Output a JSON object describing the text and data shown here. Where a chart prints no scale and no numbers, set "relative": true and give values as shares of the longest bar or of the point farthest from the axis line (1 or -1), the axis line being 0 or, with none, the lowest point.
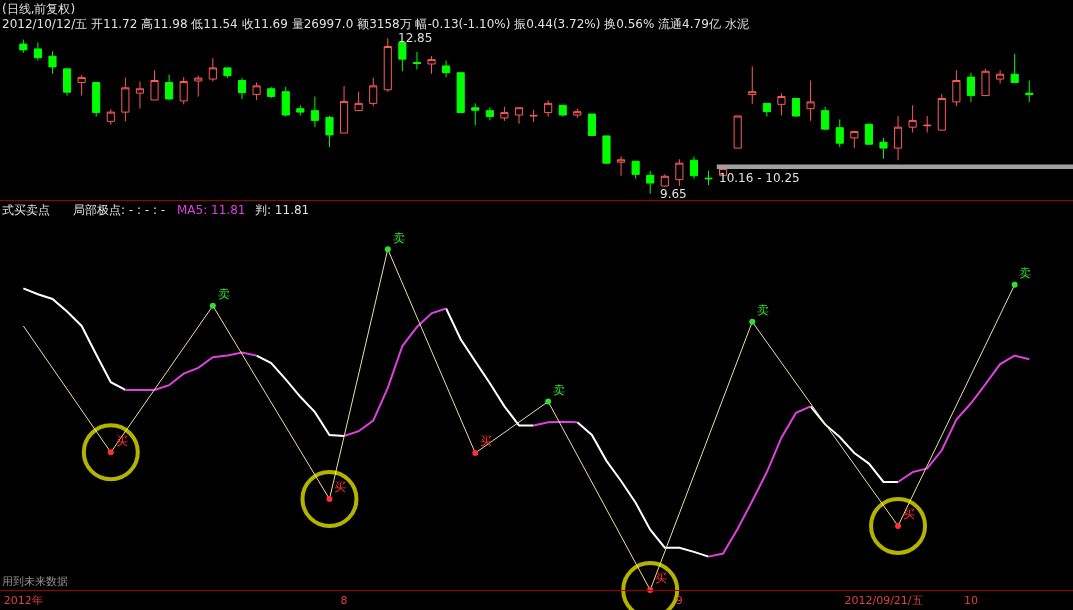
{
  "chart_data": [
    {
      "type": "candlestick",
      "title": "(日线,前复权)",
      "subtitle": "2012/10/12/五 开11.72 高11.98 低11.54 收11.69 量26997.0 额3158万 幅-0.13(-1.10%) 振0.44(3.72%) 换0.56% 流通4.79亿 水泥",
      "categories": [
        null,
        null,
        null,
        null,
        null,
        null,
        null,
        null,
        null,
        null,
        null,
        null,
        null,
        null,
        null,
        null,
        null,
        null,
        null,
        null,
        null,
        null,
        null,
        null,
        null,
        null,
        null,
        null,
        null,
        null,
        null,
        null,
        null,
        null,
        null,
        null,
        null,
        null,
        null,
        null,
        null,
        null,
        null,
        null,
        null,
        null,
        null,
        null,
        null,
        null,
        null,
        null,
        null,
        null,
        null,
        null,
        null,
        null,
        null,
        null,
        null,
        null,
        null,
        null,
        null,
        null,
        null,
        null,
        null,
        null
      ],
      "ohlc": [
        [
          12.73,
          12.82,
          12.55,
          12.61
        ],
        [
          12.63,
          12.76,
          12.39,
          12.45
        ],
        [
          12.48,
          12.58,
          12.12,
          12.26
        ],
        [
          12.22,
          12.22,
          11.67,
          11.74
        ],
        [
          11.94,
          12.09,
          11.67,
          12.04
        ],
        [
          11.94,
          11.94,
          11.24,
          11.32
        ],
        [
          11.14,
          11.39,
          11.07,
          11.33
        ],
        [
          11.33,
          12.04,
          11.14,
          11.83
        ],
        [
          11.72,
          11.96,
          11.4,
          11.81
        ],
        [
          11.58,
          12.19,
          11.58,
          11.98
        ],
        [
          11.94,
          12.1,
          11.58,
          11.6
        ],
        [
          11.56,
          12.05,
          11.49,
          11.96
        ],
        [
          11.97,
          12.08,
          11.65,
          12.03
        ],
        [
          12.01,
          12.44,
          11.96,
          12.24
        ],
        [
          12.24,
          12.24,
          12.03,
          12.08
        ],
        [
          11.98,
          12.03,
          11.6,
          11.73
        ],
        [
          11.69,
          11.94,
          11.58,
          11.87
        ],
        [
          11.81,
          11.85,
          11.62,
          11.65
        ],
        [
          11.75,
          11.85,
          11.24,
          11.27
        ],
        [
          11.4,
          11.47,
          11.26,
          11.33
        ],
        [
          11.36,
          11.65,
          11.02,
          11.16
        ],
        [
          11.22,
          11.25,
          10.61,
          10.86
        ],
        [
          10.9,
          11.87,
          10.9,
          11.55
        ],
        [
          11.36,
          11.75,
          11.36,
          11.51
        ],
        [
          11.51,
          12.04,
          11.45,
          11.87
        ],
        [
          11.79,
          12.85,
          11.75,
          12.68
        ],
        [
          12.76,
          12.76,
          12.17,
          12.42
        ],
        [
          12.35,
          12.57,
          12.21,
          12.33
        ],
        [
          12.32,
          12.48,
          12.12,
          12.41
        ],
        [
          12.28,
          12.39,
          12.05,
          12.14
        ],
        [
          12.14,
          12.14,
          11.31,
          11.32
        ],
        [
          11.42,
          11.51,
          11.06,
          11.37
        ],
        [
          11.36,
          11.43,
          11.16,
          11.24
        ],
        [
          11.21,
          11.44,
          11.15,
          11.32
        ],
        [
          11.27,
          11.42,
          11.09,
          11.42
        ],
        [
          11.25,
          11.38,
          11.13,
          11.26
        ],
        [
          11.32,
          11.57,
          11.24,
          11.51
        ],
        [
          11.47,
          11.47,
          11.24,
          11.27
        ],
        [
          11.27,
          11.4,
          11.21,
          11.34
        ],
        [
          11.29,
          11.29,
          10.84,
          10.85
        ],
        [
          10.84,
          10.84,
          10.26,
          10.28
        ],
        [
          10.3,
          10.42,
          10.02,
          10.35
        ],
        [
          10.32,
          10.32,
          9.96,
          10.05
        ],
        [
          10.03,
          10.12,
          9.65,
          9.87
        ],
        [
          9.81,
          10.05,
          9.8,
          10.01
        ],
        [
          9.94,
          10.36,
          9.81,
          10.28
        ],
        [
          10.34,
          10.41,
          9.96,
          10.02
        ],
        [
          9.97,
          10.12,
          9.83,
          9.96
        ],
        [
          10.03,
          10.23,
          10.03,
          10.17
        ],
        [
          10.59,
          11.25,
          10.59,
          11.25
        ],
        [
          11.69,
          12.27,
          11.5,
          11.75
        ],
        [
          11.51,
          11.51,
          11.24,
          11.34
        ],
        [
          11.49,
          11.72,
          11.26,
          11.65
        ],
        [
          11.61,
          11.61,
          11.24,
          11.25
        ],
        [
          11.4,
          11.98,
          11.15,
          11.54
        ],
        [
          11.36,
          11.44,
          10.97,
          10.98
        ],
        [
          11.01,
          11.18,
          10.61,
          10.69
        ],
        [
          10.8,
          10.95,
          10.59,
          10.93
        ],
        [
          11.08,
          11.09,
          10.66,
          10.67
        ],
        [
          10.71,
          10.8,
          10.37,
          10.59
        ],
        [
          10.59,
          11.25,
          10.34,
          11.02
        ],
        [
          11.02,
          11.47,
          10.91,
          11.16
        ],
        [
          11.05,
          11.25,
          10.91,
          11.06
        ],
        [
          10.96,
          11.7,
          10.96,
          11.61
        ],
        [
          11.54,
          12.19,
          11.45,
          11.98
        ],
        [
          12.05,
          12.14,
          11.54,
          11.67
        ],
        [
          11.67,
          12.22,
          11.67,
          12.17
        ],
        [
          12.01,
          12.19,
          11.92,
          12.11
        ],
        [
          12.11,
          12.53,
          11.94,
          11.94
        ],
        [
          11.72,
          11.98,
          11.54,
          11.69
        ]
      ],
      "annotations": [
        "12.85",
        "9.65"
      ],
      "bands": [
        {
          "axis": "y",
          "from": 10.16,
          "to": 10.25,
          "label": "10.16 - 10.25",
          "color": "#a0a0a0"
        }
      ]
    },
    {
      "type": "line",
      "title": "式买卖点",
      "relative": true,
      "categories": [
        "2012年",
        null,
        null,
        null,
        null,
        null,
        null,
        null,
        null,
        null,
        null,
        null,
        null,
        null,
        null,
        null,
        null,
        null,
        null,
        null,
        null,
        null,
        "8",
        null,
        null,
        null,
        null,
        null,
        null,
        null,
        null,
        null,
        null,
        null,
        null,
        null,
        null,
        null,
        null,
        null,
        null,
        null,
        null,
        null,
        null,
        "9",
        null,
        null,
        null,
        null,
        null,
        null,
        null,
        null,
        null,
        null,
        null,
        null,
        null,
        "2012/09/21/五",
        null,
        null,
        null,
        null,
        null,
        "10",
        null,
        null,
        null,
        null
      ],
      "annotations": [
        "局部极点: - : - : -",
        "MA5: 11.81",
        "判: 11.81",
        "用到未来数据"
      ],
      "series": [
        {
          "color": "#ffffff",
          "values": [
            0.885,
            0.868,
            0.854,
            0.817,
            0.775,
            0.691,
            0.61,
            0.587,
            null,
            null,
            null,
            null,
            null,
            null,
            null,
            null,
            0.688,
            0.666,
            0.618,
            0.567,
            0.522,
            0.455,
            0.452,
            null,
            null,
            null,
            null,
            null,
            null,
            0.826,
            0.736,
            0.671,
            0.607,
            0.539,
            0.483,
            0.483,
            null,
            null,
            0.492,
            0.455,
            0.379,
            0.32,
            0.256,
            0.177,
            0.124,
            0.124,
            0.112,
            0.098,
            null,
            null,
            null,
            null,
            null,
            null,
            0.539,
            0.486,
            0.449,
            0.402,
            0.371,
            0.317,
            0.317,
            null,
            null,
            null,
            null,
            null,
            null,
            null,
            null,
            null
          ]
        },
        {
          "color": "#e040e0",
          "values": [
            null,
            null,
            null,
            null,
            null,
            null,
            null,
            0.587,
            0.587,
            0.587,
            0.601,
            0.635,
            0.652,
            0.683,
            0.688,
            0.697,
            0.688,
            null,
            null,
            null,
            null,
            null,
            0.452,
            0.466,
            0.497,
            0.593,
            0.716,
            0.772,
            0.812,
            0.826,
            null,
            null,
            null,
            null,
            null,
            0.483,
            0.492,
            0.494,
            0.492,
            null,
            null,
            null,
            null,
            null,
            null,
            null,
            null,
            0.098,
            0.107,
            0.18,
            0.261,
            0.346,
            0.447,
            0.52,
            0.539,
            null,
            null,
            null,
            null,
            null,
            0.317,
            0.346,
            0.357,
            0.41,
            0.5,
            0.548,
            0.604,
            0.663,
            0.688,
            0.677
          ]
        },
        {
          "color": "#f0dca0",
          "values": [
            0.775,
            null,
            null,
            null,
            null,
            null,
            0.404,
            null,
            null,
            null,
            null,
            null,
            null,
            0.834,
            null,
            null,
            null,
            null,
            null,
            null,
            null,
            0.267,
            null,
            null,
            null,
            1,
            null,
            null,
            null,
            null,
            null,
            0.402,
            null,
            null,
            null,
            null,
            0.553,
            null,
            null,
            null,
            null,
            null,
            null,
            0,
            null,
            null,
            null,
            null,
            null,
            null,
            0.787,
            null,
            null,
            null,
            null,
            null,
            null,
            null,
            null,
            null,
            0.188,
            null,
            null,
            null,
            null,
            null,
            null,
            null,
            0.896,
            null
          ]
        },
        {
          "type": "scatter",
          "name": "买",
          "color": "#ff3030",
          "values": [
            null,
            null,
            null,
            null,
            null,
            null,
            0.404,
            null,
            null,
            null,
            null,
            null,
            null,
            null,
            null,
            null,
            null,
            null,
            null,
            null,
            null,
            0.267,
            null,
            null,
            null,
            null,
            null,
            null,
            null,
            null,
            null,
            0.402,
            null,
            null,
            null,
            null,
            null,
            null,
            null,
            null,
            null,
            null,
            null,
            0,
            null,
            null,
            null,
            null,
            null,
            null,
            null,
            null,
            null,
            null,
            null,
            null,
            null,
            null,
            null,
            null,
            0.188,
            null,
            null,
            null,
            null,
            null,
            null,
            null,
            null,
            null
          ]
        },
        {
          "type": "scatter",
          "name": "卖",
          "color": "#30e030",
          "values": [
            null,
            null,
            null,
            null,
            null,
            null,
            null,
            null,
            null,
            null,
            null,
            null,
            null,
            0.834,
            null,
            null,
            null,
            null,
            null,
            null,
            null,
            null,
            null,
            null,
            null,
            1,
            null,
            null,
            null,
            null,
            null,
            null,
            null,
            null,
            null,
            null,
            0.553,
            null,
            null,
            null,
            null,
            null,
            null,
            null,
            null,
            null,
            null,
            null,
            null,
            null,
            0.787,
            null,
            null,
            null,
            null,
            null,
            null,
            null,
            null,
            null,
            null,
            null,
            null,
            null,
            null,
            null,
            null,
            null,
            0.896,
            null
          ]
        },
        {
          "type": "bubble",
          "color": "#ffff00",
          "values": [
            null,
            null,
            null,
            null,
            null,
            null,
            0.404,
            null,
            null,
            null,
            null,
            null,
            null,
            null,
            null,
            null,
            null,
            null,
            null,
            null,
            null,
            0.267,
            null,
            null,
            null,
            null,
            null,
            null,
            null,
            null,
            null,
            null,
            null,
            null,
            null,
            null,
            null,
            null,
            null,
            null,
            null,
            null,
            null,
            0,
            null,
            null,
            null,
            null,
            null,
            null,
            null,
            null,
            null,
            null,
            null,
            null,
            null,
            null,
            null,
            null,
            0.188,
            null,
            null,
            null,
            null,
            null,
            null,
            null,
            null,
            null
          ],
          "sizes": [
            null,
            null,
            null,
            null,
            null,
            null,
            1,
            null,
            null,
            null,
            null,
            null,
            null,
            null,
            null,
            null,
            null,
            null,
            null,
            null,
            null,
            1,
            null,
            null,
            null,
            null,
            null,
            null,
            null,
            null,
            null,
            null,
            null,
            null,
            null,
            null,
            null,
            null,
            null,
            null,
            null,
            null,
            null,
            1,
            null,
            null,
            null,
            null,
            null,
            null,
            null,
            null,
            null,
            null,
            null,
            null,
            null,
            null,
            null,
            null,
            1,
            null,
            null,
            null,
            null,
            null,
            null,
            null,
            null,
            null
          ]
        }
      ]
    }
  ]
}
